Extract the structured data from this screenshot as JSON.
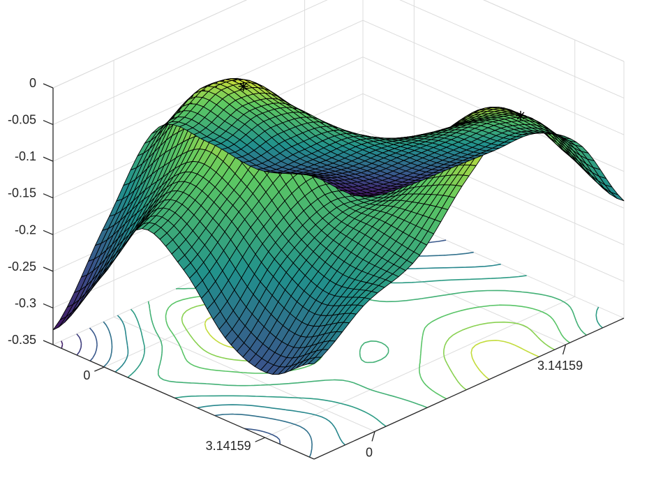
{
  "chart_data": {
    "type": "surface",
    "title": "",
    "xlabel": "",
    "ylabel": "",
    "zlabel": "",
    "x_ticks": [
      {
        "value": 0,
        "label": "0"
      },
      {
        "value": 3.14159,
        "label": "3.14159"
      }
    ],
    "y_ticks": [
      {
        "value": 0,
        "label": "0"
      },
      {
        "value": 3.14159,
        "label": "3.14159"
      }
    ],
    "z_ticks": [
      {
        "value": 0,
        "label": "0"
      },
      {
        "value": -0.05,
        "label": "-0.05"
      },
      {
        "value": -0.1,
        "label": "-0.1"
      },
      {
        "value": -0.15,
        "label": "-0.15"
      },
      {
        "value": -0.2,
        "label": "-0.2"
      },
      {
        "value": -0.25,
        "label": "-0.25"
      },
      {
        "value": -0.3,
        "label": "-0.3"
      },
      {
        "value": -0.35,
        "label": "-0.35"
      }
    ],
    "xlim": [
      -1.0,
      4.1
    ],
    "ylim": [
      -1.0,
      4.1
    ],
    "zlim": [
      -0.35,
      0
    ],
    "grid": true,
    "colormap": [
      "#440154",
      "#3b528b",
      "#21918c",
      "#5ec962",
      "#fde725"
    ],
    "surface_values": {
      "x": [
        -1.0,
        -0.15,
        0.7,
        1.55,
        2.4,
        3.25,
        4.1
      ],
      "y": [
        -1.0,
        -0.15,
        0.7,
        1.55,
        2.4,
        3.25,
        4.1
      ],
      "z": [
        [
          -0.33,
          -0.24,
          -0.14,
          -0.17,
          -0.24,
          -0.26,
          -0.22
        ],
        [
          -0.22,
          -0.15,
          -0.09,
          -0.11,
          -0.16,
          -0.19,
          -0.17
        ],
        [
          -0.12,
          -0.04,
          -0.01,
          -0.06,
          -0.12,
          -0.13,
          -0.14
        ],
        [
          -0.17,
          -0.1,
          -0.07,
          -0.11,
          -0.13,
          -0.09,
          -0.06
        ],
        [
          -0.24,
          -0.19,
          -0.14,
          -0.12,
          -0.09,
          -0.03,
          -0.01
        ],
        [
          -0.28,
          -0.25,
          -0.2,
          -0.15,
          -0.1,
          -0.07,
          -0.1
        ],
        [
          -0.34,
          -0.3,
          -0.25,
          -0.2,
          -0.15,
          -0.14,
          -0.19
        ]
      ]
    },
    "maxima_markers": [
      {
        "x": 0.7,
        "y": 0.7,
        "z": 0,
        "symbol": "*"
      },
      {
        "x": 4.1,
        "y": 2.4,
        "z": 0,
        "symbol": "*"
      }
    ]
  }
}
